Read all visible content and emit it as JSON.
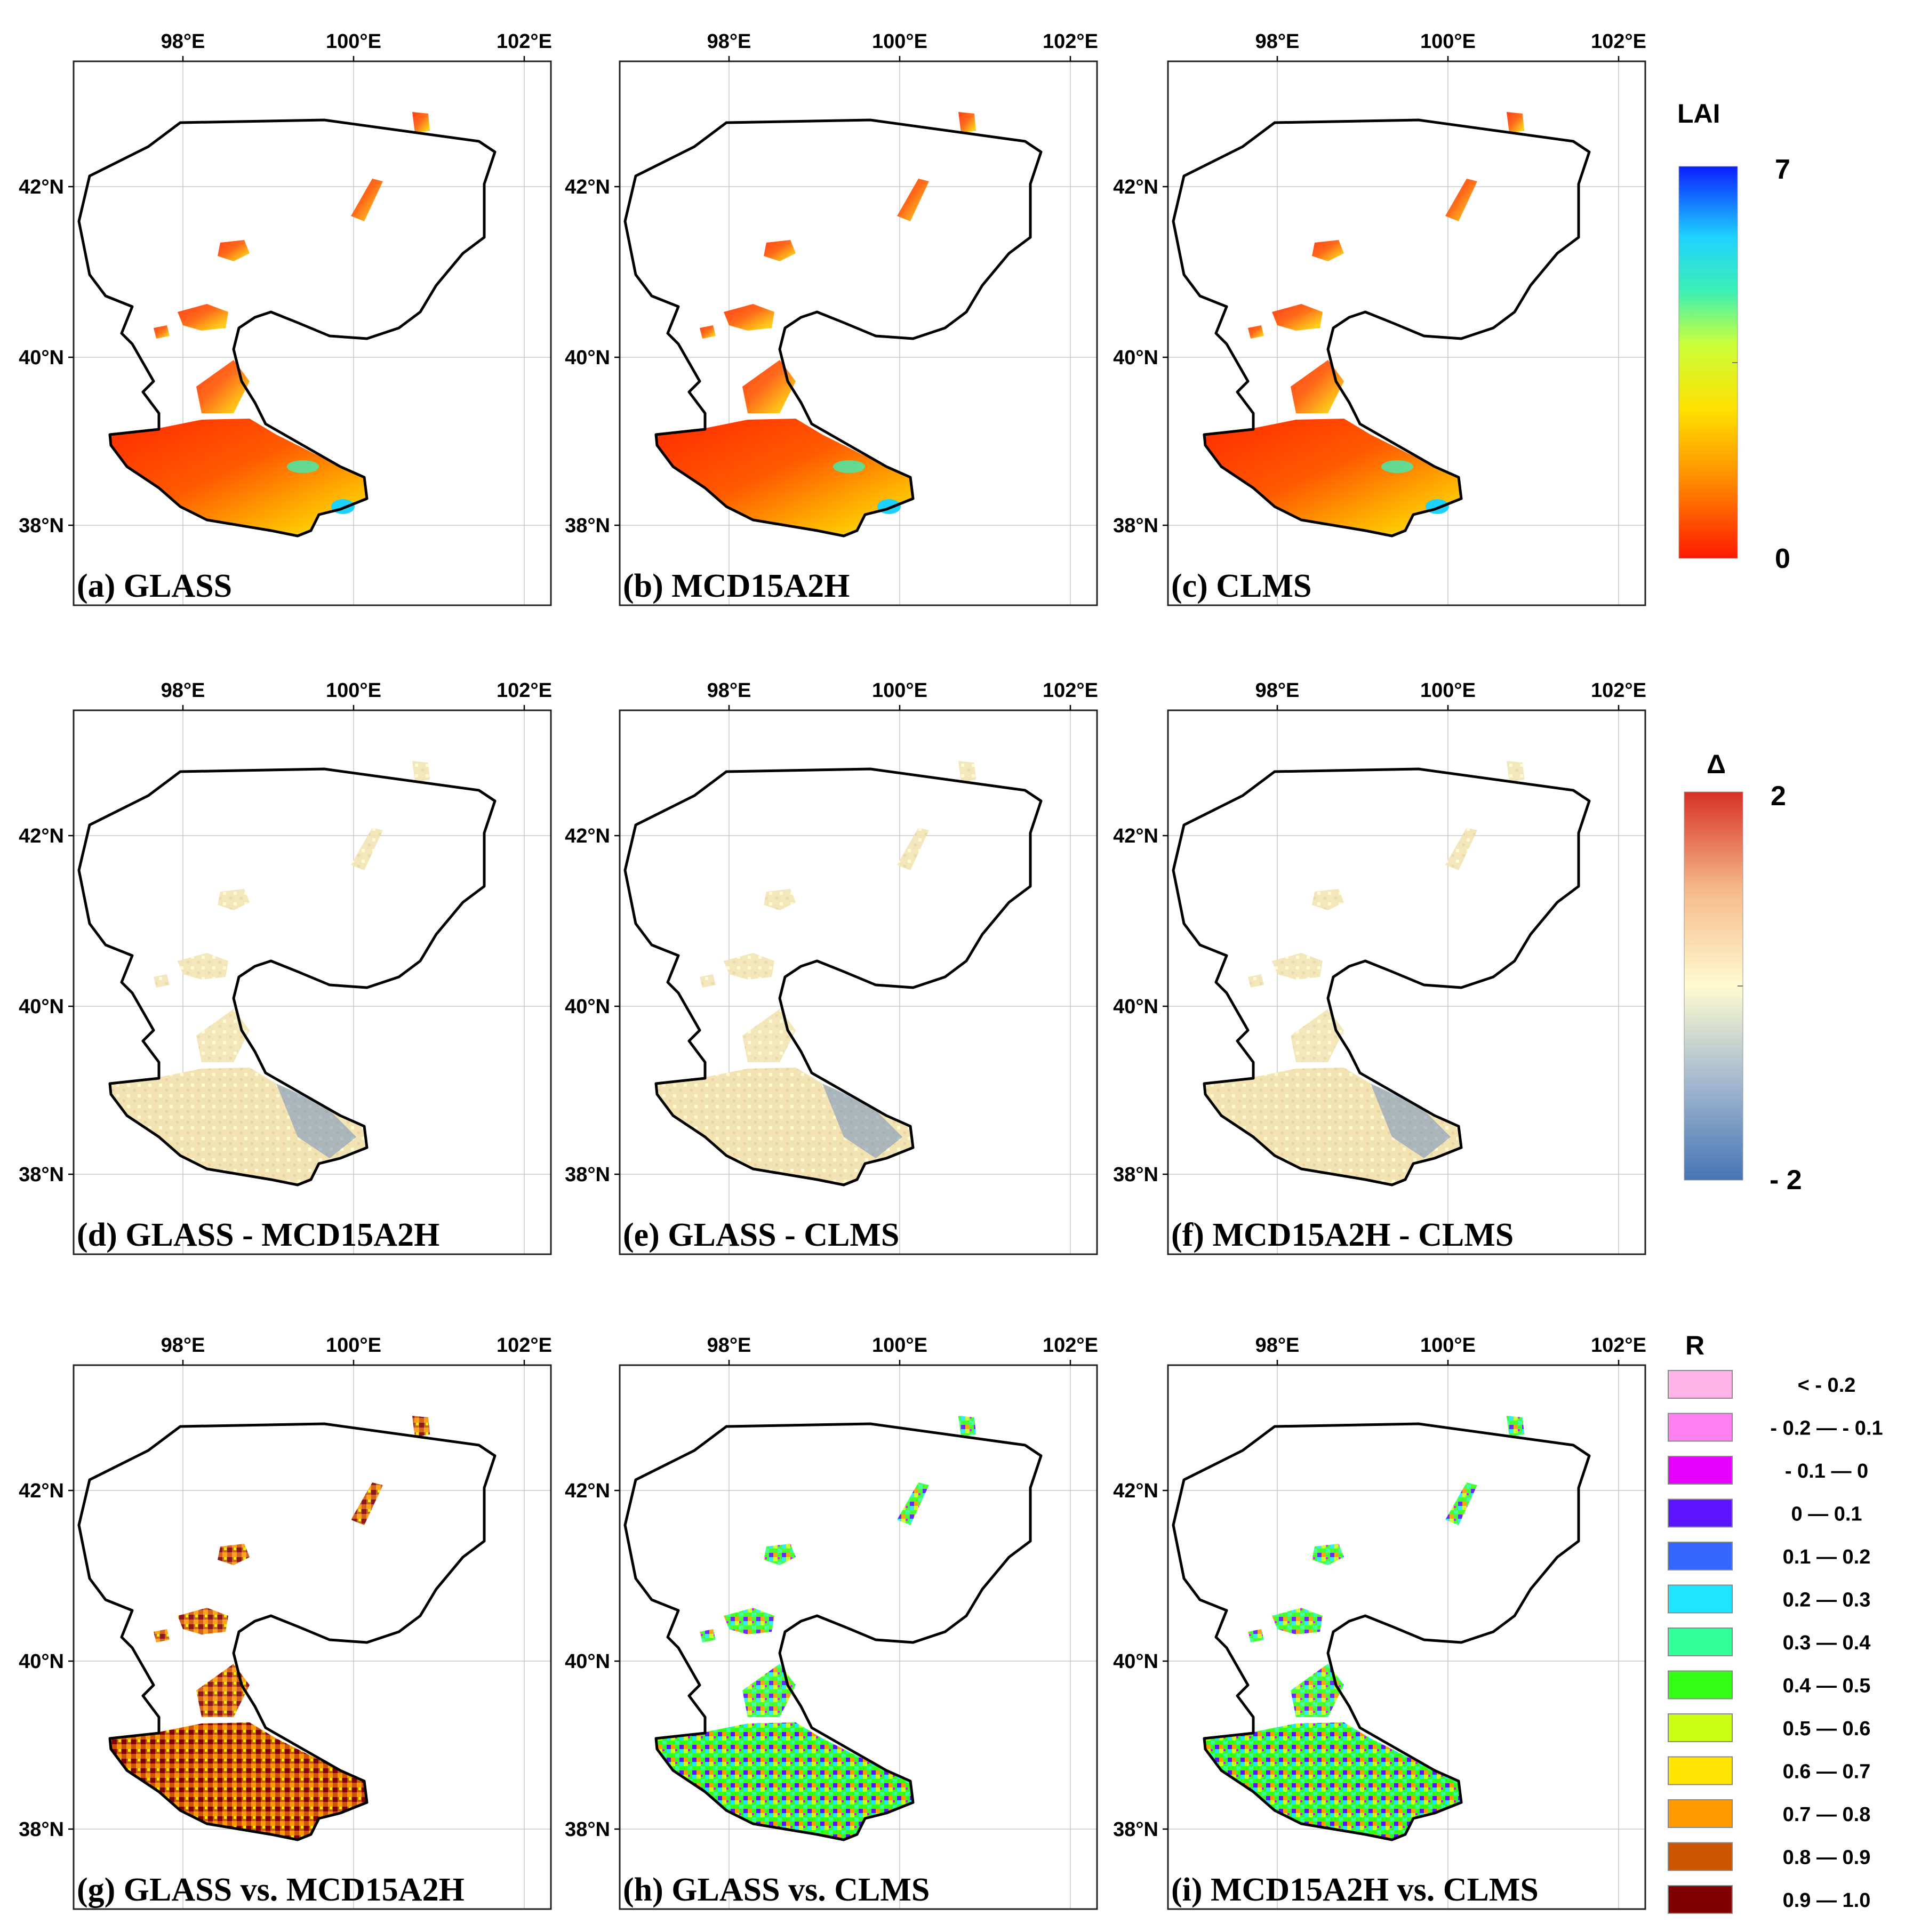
{
  "axes": {
    "lon_labels": [
      "98°E",
      "100°E",
      "102°E"
    ],
    "lat_labels": [
      "42°N",
      "40°N",
      "38°N"
    ]
  },
  "panels": [
    {
      "id": "a",
      "title": "(a) GLASS",
      "kind": "lai"
    },
    {
      "id": "b",
      "title": "(b) MCD15A2H",
      "kind": "lai"
    },
    {
      "id": "c",
      "title": "(c) CLMS",
      "kind": "lai"
    },
    {
      "id": "d",
      "title": "(d) GLASS - MCD15A2H",
      "kind": "diff"
    },
    {
      "id": "e",
      "title": "(e) GLASS - CLMS",
      "kind": "diff"
    },
    {
      "id": "f",
      "title": "(f) MCD15A2H - CLMS",
      "kind": "diff"
    },
    {
      "id": "g",
      "title": "(g) GLASS vs. MCD15A2H",
      "kind": "r_high"
    },
    {
      "id": "h",
      "title": "(h) GLASS vs. CLMS",
      "kind": "r_mixed"
    },
    {
      "id": "i",
      "title": "(i) MCD15A2H vs. CLMS",
      "kind": "r_mixed"
    }
  ],
  "legends": {
    "lai": {
      "title": "LAI",
      "max": "7",
      "min": "0"
    },
    "diff": {
      "title": "Δ",
      "max": "2",
      "min": "- 2"
    },
    "r": {
      "title": "R",
      "classes": [
        {
          "label": "< - 0.2",
          "color": "#ffb3e6"
        },
        {
          "label": "- 0.2 — - 0.1",
          "color": "#ff80f0"
        },
        {
          "label": "- 0.1 — 0",
          "color": "#e600ff"
        },
        {
          "label": "0 — 0.1",
          "color": "#5a14ff"
        },
        {
          "label": "0.1 — 0.2",
          "color": "#3366ff"
        },
        {
          "label": "0.2 — 0.3",
          "color": "#1ee6ff"
        },
        {
          "label": "0.3 — 0.4",
          "color": "#33ff99"
        },
        {
          "label": "0.4 — 0.5",
          "color": "#33ff14"
        },
        {
          "label": "0.5 — 0.6",
          "color": "#c8ff14"
        },
        {
          "label": "0.6 — 0.7",
          "color": "#ffe600"
        },
        {
          "label": "0.7 — 0.8",
          "color": "#ff9900"
        },
        {
          "label": "0.8 — 0.9",
          "color": "#cc5500"
        },
        {
          "label": "0.9 — 1.0",
          "color": "#800000"
        }
      ]
    }
  },
  "colors": {
    "lai_low": "#ff1a00",
    "lai_mid1": "#ff8c00",
    "lai_mid2": "#ffe000",
    "lai_mid3": "#c8ff3c",
    "lai_mid4": "#3cf0b4",
    "lai_mid5": "#1ed2ff",
    "lai_high": "#0a1eff",
    "diff_high": "#d73027",
    "diff_mid": "#fefbd0",
    "diff_low": "#4575b4",
    "diff_fill": "#f3e3b3",
    "diff_blue": "#6f8fbf"
  }
}
